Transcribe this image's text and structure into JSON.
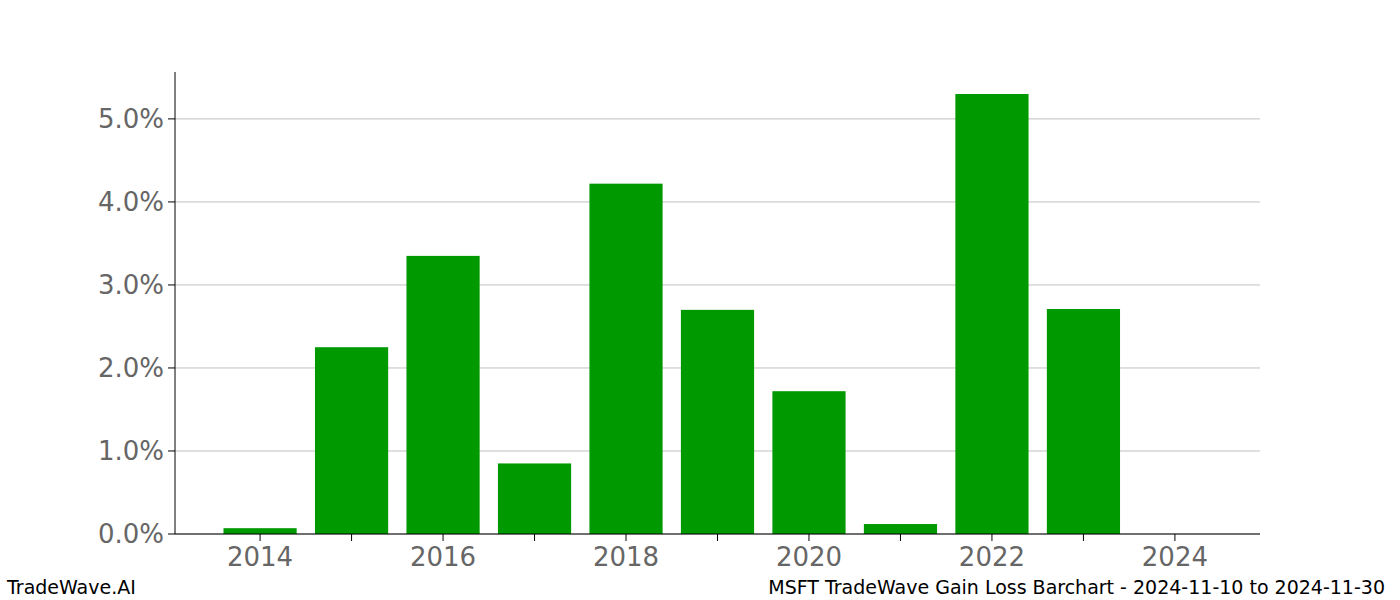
{
  "chart_data": {
    "type": "bar",
    "title": "MSFT TradeWave Gain Loss Barchart - 2024-11-10 to 2024-11-30",
    "source": "TradeWave.AI",
    "categories": [
      "2014",
      null,
      "2016",
      null,
      "2018",
      null,
      "2020",
      null,
      "2022",
      null,
      "2024"
    ],
    "values": [
      0.07,
      2.25,
      3.35,
      0.85,
      4.22,
      2.7,
      1.72,
      0.12,
      5.3,
      2.71,
      0
    ],
    "color": "#009900",
    "ylim": [
      0,
      5.565
    ],
    "yticks": [
      {
        "value": 0,
        "label": "0.0%"
      },
      {
        "value": 1,
        "label": "1.0%"
      },
      {
        "value": 2,
        "label": "2.0%"
      },
      {
        "value": 3,
        "label": "3.0%"
      },
      {
        "value": 4,
        "label": "4.0%"
      },
      {
        "value": 5,
        "label": "5.0%"
      }
    ],
    "grid": true
  }
}
